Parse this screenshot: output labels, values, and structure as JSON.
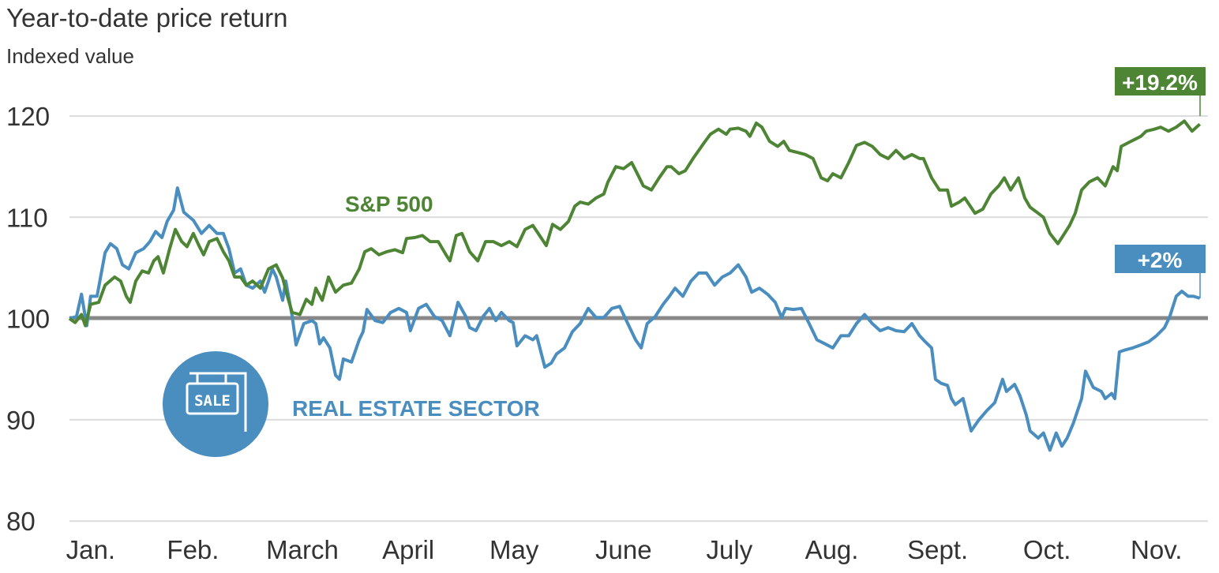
{
  "chart_data": {
    "type": "line",
    "title": "Year-to-date price return",
    "subtitle": "Indexed value",
    "xlabel": "",
    "ylabel": "Indexed value",
    "ylim": [
      80,
      120
    ],
    "xlim_days": [
      0,
      320.3
    ],
    "grid": true,
    "baseline": 100,
    "yticks": [
      {
        "value": 120,
        "label": "120"
      },
      {
        "value": 110,
        "label": "110"
      },
      {
        "value": 100,
        "label": "100"
      },
      {
        "value": 90,
        "label": "90"
      },
      {
        "value": 80,
        "label": "80"
      }
    ],
    "xticks": [
      {
        "day": 6,
        "label": "Jan."
      },
      {
        "day": 35,
        "label": "Feb."
      },
      {
        "day": 66,
        "label": "March"
      },
      {
        "day": 96,
        "label": "April"
      },
      {
        "day": 126,
        "label": "May"
      },
      {
        "day": 157,
        "label": "June"
      },
      {
        "day": 187,
        "label": "July"
      },
      {
        "day": 216,
        "label": "Aug."
      },
      {
        "day": 246,
        "label": "Sept."
      },
      {
        "day": 277,
        "label": "Oct."
      },
      {
        "day": 308,
        "label": "Nov."
      }
    ],
    "series": [
      {
        "name": "S&P 500",
        "color": "#4d8535",
        "end_label": "+19.2%",
        "x": [
          0,
          1.6,
          3.4,
          4.5,
          6.0,
          8.3,
          10.1,
          12.8,
          14.5,
          16.1,
          17.2,
          18.8,
          20.6,
          22.4,
          23.9,
          25.1,
          26.6,
          28.4,
          30.0,
          31.8,
          33.3,
          35.1,
          36.7,
          38.0,
          39.6,
          41.8,
          43.6,
          45.2,
          46.8,
          48.5,
          50.1,
          51.9,
          54.1,
          56.4,
          58.6,
          60.4,
          62.0,
          63.1,
          65.3,
          67.1,
          68.7,
          69.8,
          71.6,
          73.4,
          75.4,
          77.6,
          79.9,
          82.1,
          83.7,
          85.5,
          87.7,
          89.9,
          92.2,
          94.4,
          95.5,
          97.8,
          100.0,
          102.2,
          104.5,
          106.7,
          107.8,
          109.6,
          111.2,
          113.4,
          115.7,
          117.9,
          120.1,
          122.4,
          124.6,
          126.8,
          129.1,
          131.3,
          133.6,
          135.1,
          136.9,
          139.1,
          141.4,
          143.2,
          144.7,
          147.0,
          149.2,
          151.4,
          152.6,
          154.8,
          157.0,
          159.3,
          161.5,
          162.6,
          164.9,
          167.1,
          169.3,
          170.5,
          172.7,
          174.5,
          176.7,
          178.3,
          179.9,
          181.6,
          183.9,
          186.1,
          187.2,
          189.5,
          191.7,
          192.8,
          194.6,
          196.2,
          198.4,
          200.7,
          202.4,
          204.0,
          206.3,
          208.5,
          210.7,
          213.0,
          214.8,
          216.3,
          218.6,
          220.8,
          223.0,
          225.3,
          227.5,
          229.7,
          232.0,
          234.2,
          236.5,
          238.7,
          240.9,
          242.0,
          244.3,
          246.5,
          248.8,
          249.9,
          252.1,
          253.7,
          256.6,
          258.8,
          261.1,
          263.3,
          264.9,
          266.7,
          268.9,
          270.7,
          272.2,
          274.5,
          276.0,
          277.8,
          280.1,
          281.2,
          283.4,
          285.0,
          286.8,
          289.0,
          291.3,
          293.5,
          295.7,
          296.9,
          298.0,
          300.2,
          302.5,
          303.6,
          305.1,
          307.4,
          309.2,
          311.4,
          313.6,
          315.9,
          318.1,
          320.3
        ],
        "y": [
          100.0,
          99.6,
          100.4,
          99.3,
          101.4,
          101.6,
          103.3,
          104.1,
          103.7,
          102.2,
          101.6,
          103.7,
          104.7,
          104.5,
          105.7,
          106.1,
          104.5,
          106.9,
          108.8,
          107.6,
          107.1,
          108.4,
          107.2,
          106.3,
          107.6,
          107.9,
          106.6,
          105.7,
          104.1,
          104.1,
          103.3,
          103.7,
          103.0,
          104.9,
          105.3,
          104.0,
          101.9,
          100.6,
          100.4,
          101.9,
          101.4,
          103.0,
          101.8,
          104.1,
          102.6,
          103.3,
          103.5,
          104.9,
          106.6,
          106.9,
          106.3,
          106.6,
          106.8,
          106.5,
          107.9,
          108.0,
          108.2,
          107.6,
          107.6,
          106.3,
          105.7,
          108.2,
          108.4,
          106.6,
          105.7,
          107.6,
          107.6,
          107.2,
          107.6,
          107.1,
          108.8,
          109.2,
          108.0,
          107.2,
          109.3,
          108.8,
          109.6,
          111.1,
          111.5,
          111.3,
          111.9,
          112.3,
          113.5,
          115.0,
          114.8,
          115.4,
          113.9,
          113.1,
          112.7,
          113.9,
          115.0,
          115.0,
          114.3,
          114.6,
          115.8,
          116.6,
          117.4,
          118.2,
          118.7,
          118.2,
          118.7,
          118.8,
          118.5,
          118.0,
          119.3,
          118.9,
          117.5,
          117.0,
          117.5,
          116.6,
          116.4,
          116.2,
          115.8,
          113.9,
          113.6,
          114.3,
          113.9,
          115.4,
          117.1,
          117.4,
          117.0,
          116.2,
          115.8,
          116.6,
          115.8,
          116.2,
          115.8,
          115.8,
          113.9,
          112.7,
          112.7,
          111.1,
          111.5,
          111.9,
          110.4,
          110.8,
          112.3,
          113.1,
          113.9,
          112.7,
          113.9,
          111.9,
          111.0,
          110.4,
          110.0,
          108.4,
          107.4,
          108.0,
          109.2,
          110.4,
          112.7,
          113.5,
          113.9,
          113.1,
          115.0,
          114.6,
          117.0,
          117.4,
          117.8,
          118.0,
          118.5,
          118.7,
          118.9,
          118.5,
          118.9,
          119.5,
          118.5,
          119.2
        ]
      },
      {
        "name": "REAL ESTATE SECTOR",
        "color": "#4a8dbf",
        "end_label": "+2%",
        "x": [
          0,
          2.0,
          3.4,
          4.9,
          6.0,
          7.8,
          10.1,
          11.6,
          13.4,
          15.0,
          16.8,
          18.8,
          21.0,
          22.8,
          24.4,
          26.2,
          27.7,
          29.5,
          30.6,
          32.4,
          35.1,
          37.4,
          39.6,
          41.8,
          43.6,
          45.2,
          46.8,
          48.5,
          50.1,
          51.9,
          54.1,
          55.3,
          56.4,
          57.5,
          58.6,
          60.4,
          61.3,
          63.1,
          64.2,
          66.4,
          68.7,
          69.8,
          70.9,
          72.0,
          73.8,
          75.4,
          76.5,
          77.6,
          79.9,
          82.1,
          83.2,
          84.3,
          86.6,
          88.8,
          91.0,
          93.3,
          95.5,
          96.6,
          98.9,
          101.1,
          103.4,
          105.6,
          107.8,
          110.1,
          112.3,
          113.4,
          115.2,
          117.2,
          119.0,
          120.8,
          122.4,
          124.6,
          125.7,
          126.8,
          129.1,
          131.3,
          132.4,
          134.7,
          136.5,
          138.0,
          140.3,
          142.5,
          144.7,
          147.0,
          149.2,
          151.4,
          153.7,
          155.9,
          158.2,
          160.4,
          162.0,
          163.7,
          166.0,
          168.2,
          170.0,
          171.6,
          173.8,
          176.1,
          178.3,
          180.5,
          182.8,
          185.0,
          187.2,
          189.5,
          191.7,
          193.3,
          195.5,
          197.8,
          200.0,
          201.8,
          202.9,
          205.1,
          207.4,
          209.6,
          211.8,
          214.1,
          216.3,
          218.6,
          220.8,
          223.0,
          225.3,
          227.5,
          229.7,
          232.0,
          234.2,
          236.5,
          238.7,
          240.9,
          242.5,
          244.3,
          245.4,
          247.0,
          248.8,
          249.9,
          251.0,
          253.2,
          255.5,
          257.7,
          259.9,
          262.2,
          264.4,
          265.5,
          267.8,
          269.3,
          271.1,
          272.2,
          274.5,
          276.0,
          277.8,
          279.6,
          281.2,
          282.7,
          284.5,
          286.8,
          287.9,
          290.1,
          292.4,
          293.5,
          295.3,
          296.2,
          297.5,
          299.1,
          301.3,
          303.6,
          305.8,
          308.0,
          310.3,
          311.8,
          313.6,
          315.2,
          317.0,
          318.5,
          320.3
        ],
        "y": [
          100.0,
          100.2,
          102.4,
          99.3,
          102.2,
          102.2,
          106.5,
          107.4,
          106.9,
          105.3,
          104.9,
          106.5,
          106.9,
          107.6,
          108.6,
          108.0,
          109.6,
          110.7,
          112.9,
          110.5,
          109.7,
          108.4,
          109.2,
          108.4,
          108.4,
          106.9,
          104.5,
          104.9,
          103.3,
          103.0,
          103.7,
          102.6,
          103.7,
          104.9,
          104.1,
          101.8,
          103.7,
          100.2,
          97.4,
          99.5,
          99.8,
          99.5,
          97.5,
          98.1,
          97.1,
          94.4,
          94.0,
          96.0,
          95.7,
          97.9,
          98.7,
          100.9,
          99.8,
          99.6,
          100.6,
          101.0,
          100.6,
          98.8,
          101.0,
          101.4,
          100.2,
          99.8,
          98.3,
          101.6,
          100.2,
          99.1,
          98.8,
          100.2,
          101.0,
          99.8,
          100.6,
          99.8,
          99.6,
          97.3,
          98.3,
          97.9,
          98.3,
          95.2,
          95.6,
          96.5,
          97.1,
          98.7,
          99.5,
          101.0,
          100.1,
          100.1,
          101.0,
          101.2,
          99.5,
          97.9,
          97.1,
          99.5,
          100.2,
          101.4,
          102.2,
          103.0,
          102.2,
          103.7,
          104.5,
          104.5,
          103.3,
          104.1,
          104.5,
          105.3,
          104.1,
          102.6,
          103.0,
          102.4,
          101.6,
          100.1,
          101.0,
          100.9,
          101.0,
          99.5,
          97.9,
          97.5,
          97.1,
          98.3,
          98.3,
          99.5,
          100.4,
          99.5,
          98.8,
          99.1,
          98.8,
          98.7,
          99.5,
          98.3,
          97.7,
          97.1,
          94.0,
          93.6,
          93.4,
          92.1,
          91.5,
          92.1,
          88.9,
          90.0,
          90.9,
          91.7,
          94.0,
          92.8,
          93.5,
          92.4,
          90.5,
          88.9,
          88.2,
          88.7,
          87.0,
          88.7,
          87.4,
          88.2,
          89.7,
          92.1,
          94.8,
          93.2,
          92.8,
          92.1,
          92.6,
          92.1,
          96.7,
          96.9,
          97.1,
          97.4,
          97.7,
          98.3,
          99.1,
          100.2,
          102.2,
          102.7,
          102.2,
          102.2,
          102.0
        ]
      }
    ],
    "icon": {
      "name": "sale-sign-icon",
      "text": "SALE",
      "color": "#4a8dbf"
    }
  }
}
